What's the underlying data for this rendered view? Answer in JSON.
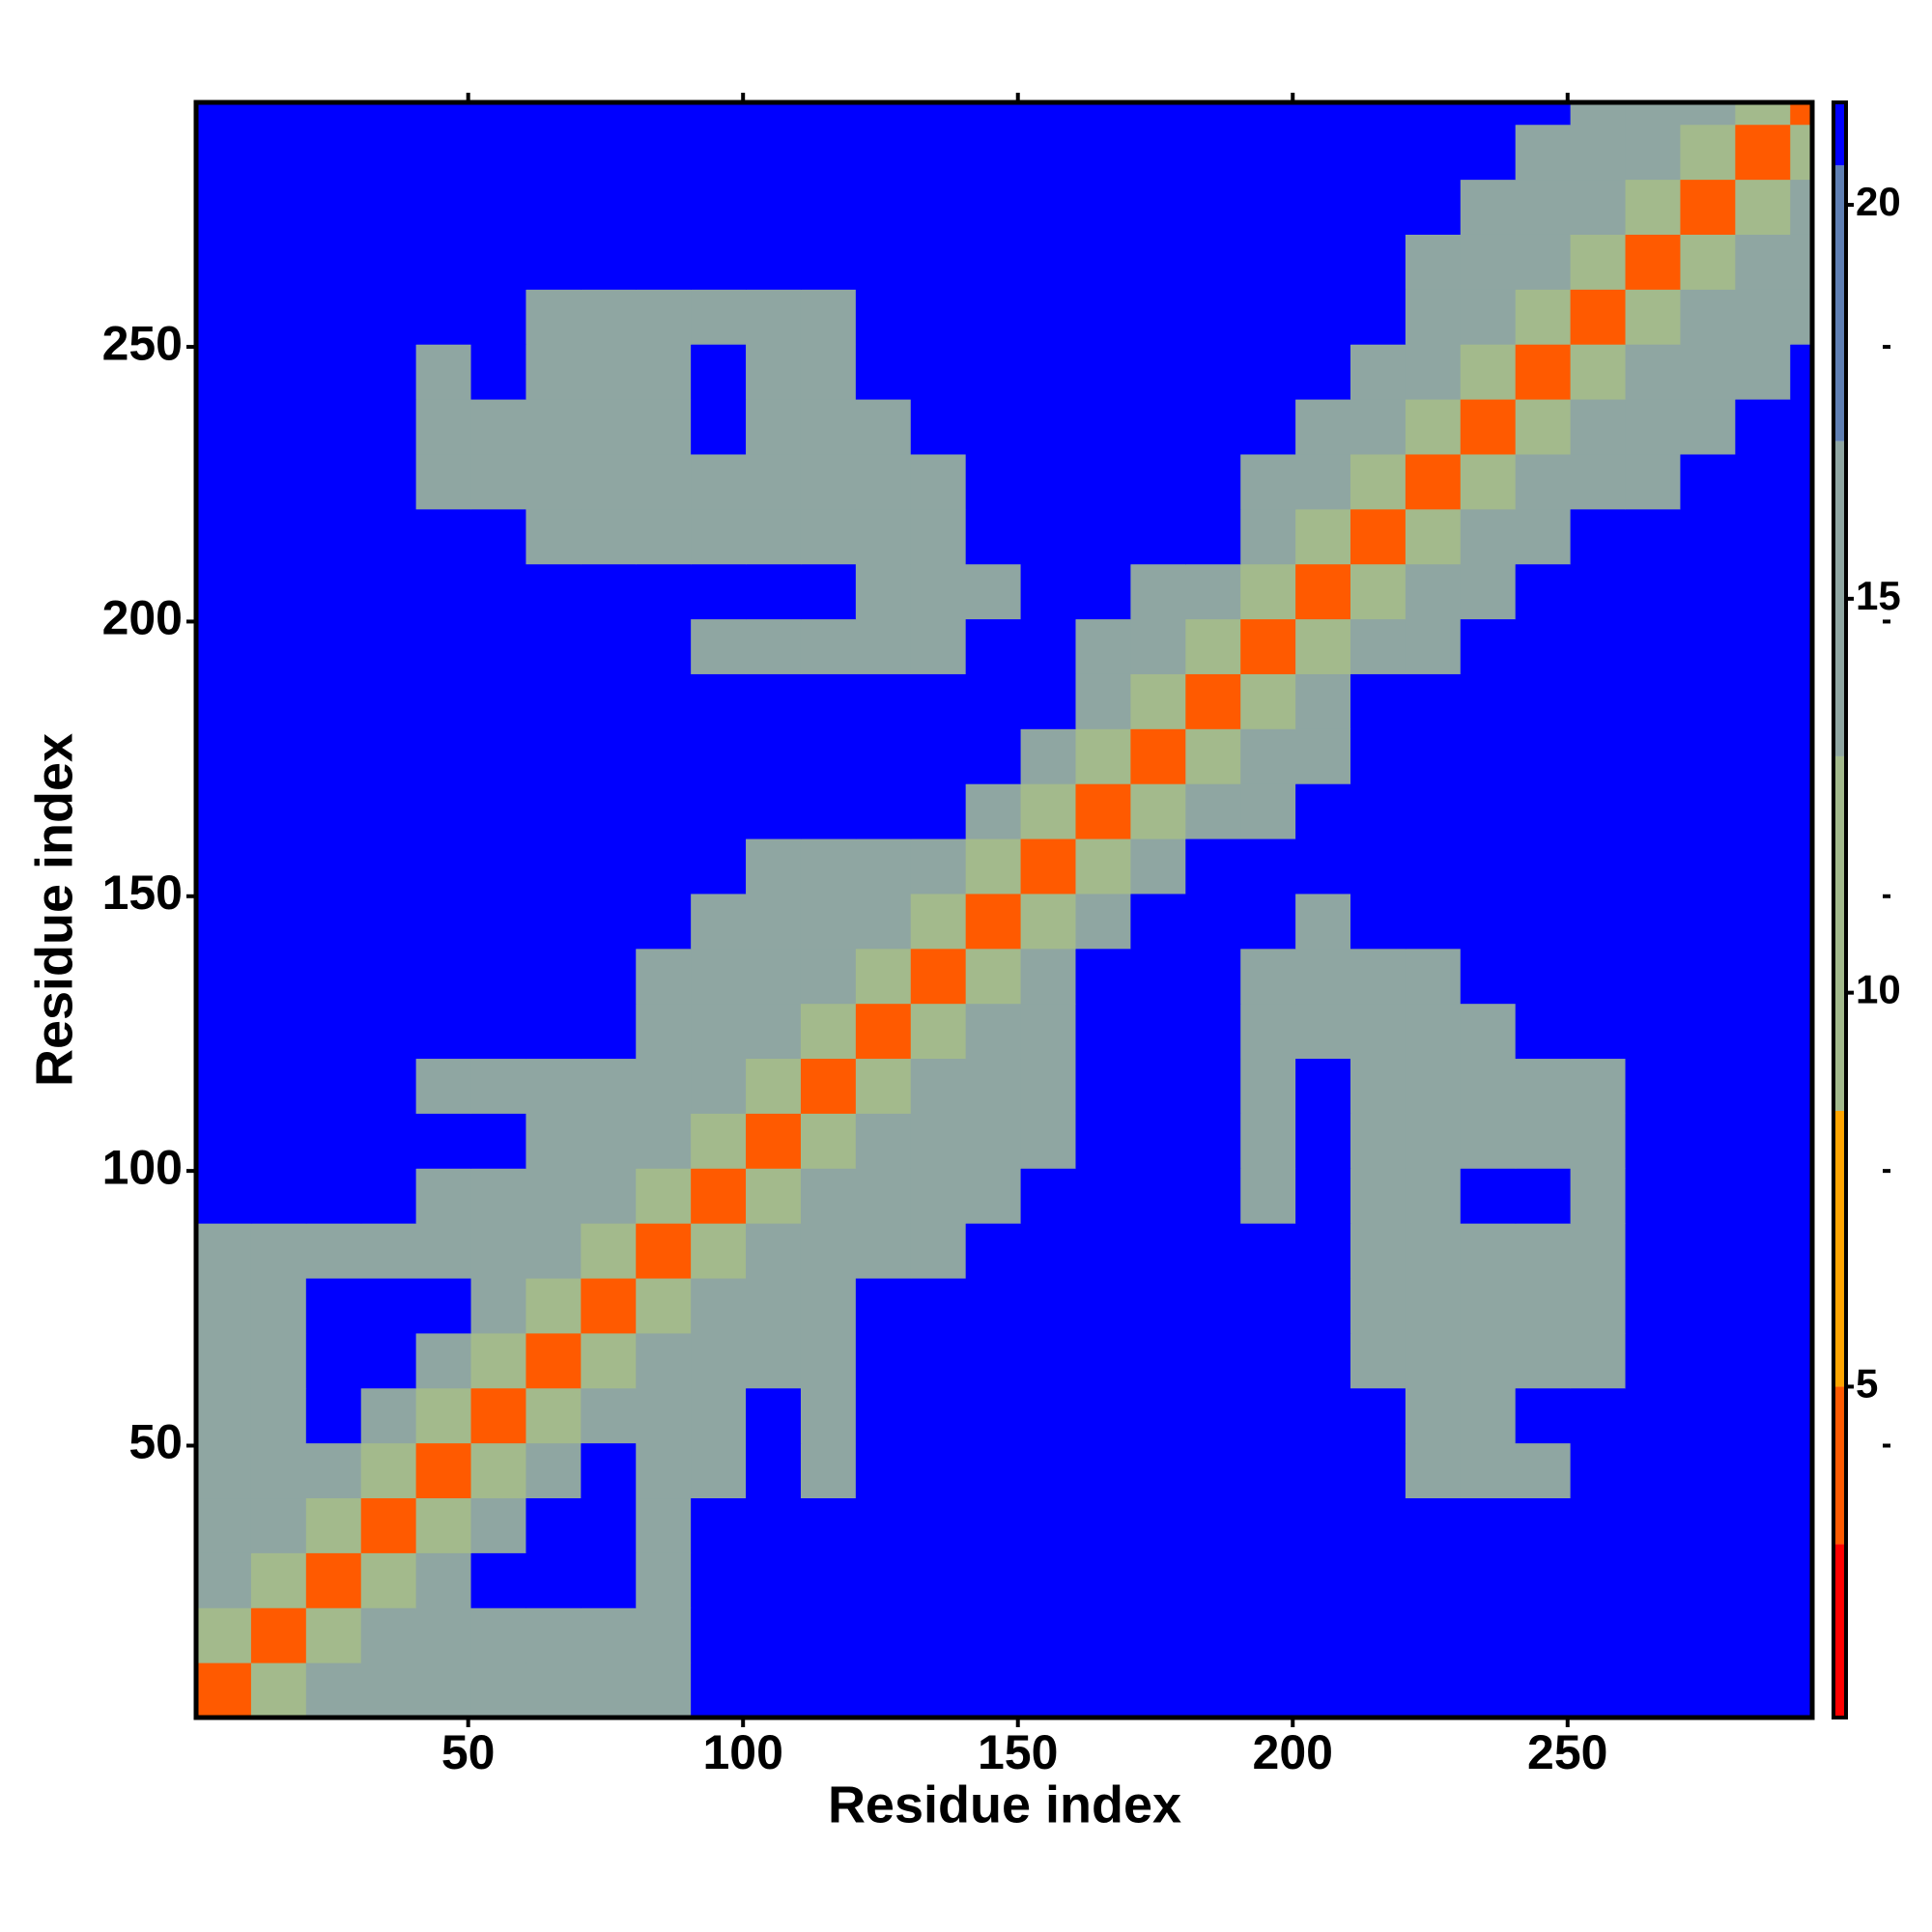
{
  "chart_data": {
    "type": "heatmap",
    "xlabel": "Residue index",
    "ylabel": "Residue index",
    "xlim": [
      0.5,
      294.5
    ],
    "ylim": [
      0.5,
      294.5
    ],
    "xticks": [
      50,
      100,
      150,
      200,
      250
    ],
    "yticks": [
      50,
      100,
      150,
      200,
      250
    ],
    "x_edges": [
      0.5,
      10.5,
      20.5,
      30.5,
      40.5,
      50.5,
      60.5,
      70.5,
      80.5,
      90.5,
      100.5,
      110.5,
      120.5,
      130.5,
      140.5,
      150.5,
      160.5,
      170.5,
      180.5,
      190.5,
      200.5,
      210.5,
      220.5,
      230.5,
      240.5,
      250.5,
      260.5,
      270.5,
      280.5,
      290.5,
      294.5
    ],
    "y_edges": [
      0.5,
      10.5,
      20.5,
      30.5,
      40.5,
      50.5,
      60.5,
      70.5,
      80.5,
      90.5,
      100.5,
      110.5,
      120.5,
      130.5,
      140.5,
      150.5,
      160.5,
      170.5,
      180.5,
      190.5,
      200.5,
      210.5,
      220.5,
      230.5,
      240.5,
      250.5,
      260.5,
      270.5,
      280.5,
      290.5,
      294.5
    ],
    "clim": [
      0.8,
      21.3
    ],
    "cticks": [
      5,
      10,
      15,
      20
    ],
    "colorscale": [
      [
        3,
        "#ff0000"
      ],
      [
        5,
        "#ff5a00"
      ],
      [
        8.5,
        "#ffa500"
      ],
      [
        13,
        "#a3ba8c"
      ],
      [
        17,
        "#8fa6a2"
      ],
      [
        20.5,
        "#5f7fb3"
      ],
      [
        21.3,
        "#0000ff"
      ]
    ],
    "z": [
      [
        4,
        11,
        15,
        14,
        14,
        14,
        14,
        14,
        14,
        21,
        21,
        21,
        21,
        21,
        21,
        21,
        21,
        21,
        21,
        21,
        21,
        21,
        21,
        21,
        21,
        21,
        21,
        21,
        21,
        21
      ],
      [
        11,
        4,
        11,
        14,
        14,
        14,
        14,
        14,
        14,
        21,
        21,
        21,
        21,
        21,
        21,
        21,
        21,
        21,
        21,
        21,
        21,
        21,
        21,
        21,
        21,
        21,
        21,
        21,
        21,
        21
      ],
      [
        15,
        11,
        4,
        11,
        15,
        21,
        21,
        21,
        14,
        21,
        21,
        21,
        21,
        21,
        21,
        21,
        21,
        21,
        21,
        21,
        21,
        21,
        21,
        21,
        21,
        21,
        21,
        21,
        21,
        21
      ],
      [
        14,
        14,
        11,
        4,
        11,
        15,
        21,
        21,
        14,
        21,
        21,
        21,
        21,
        21,
        21,
        21,
        21,
        21,
        21,
        21,
        21,
        21,
        21,
        21,
        21,
        21,
        21,
        21,
        21,
        21
      ],
      [
        14,
        14,
        15,
        11,
        4,
        11,
        15,
        21,
        14,
        14,
        21,
        16,
        21,
        21,
        21,
        21,
        21,
        21,
        21,
        21,
        21,
        21,
        15,
        15,
        15,
        21,
        21,
        21,
        21,
        21
      ],
      [
        14,
        14,
        21,
        15,
        11,
        4,
        11,
        15,
        14,
        14,
        21,
        16,
        21,
        21,
        21,
        21,
        21,
        21,
        21,
        21,
        21,
        21,
        15,
        15,
        21,
        21,
        21,
        21,
        21,
        21
      ],
      [
        14,
        14,
        21,
        21,
        15,
        11,
        4,
        11,
        15,
        14,
        16,
        16,
        21,
        21,
        21,
        21,
        21,
        21,
        21,
        21,
        21,
        14,
        14,
        14,
        14,
        14,
        21,
        21,
        21,
        21
      ],
      [
        14,
        14,
        21,
        21,
        21,
        15,
        11,
        4,
        11,
        15,
        14,
        14,
        21,
        21,
        21,
        21,
        21,
        21,
        21,
        21,
        21,
        14,
        14,
        14,
        14,
        14,
        21,
        21,
        21,
        21
      ],
      [
        14,
        14,
        14,
        14,
        14,
        14,
        15,
        11,
        4,
        11,
        15,
        14,
        16,
        16,
        21,
        21,
        21,
        21,
        21,
        21,
        21,
        14,
        14,
        14,
        14,
        14,
        21,
        21,
        21,
        21
      ],
      [
        21,
        21,
        21,
        21,
        14,
        14,
        14,
        15,
        11,
        4,
        11,
        15,
        14,
        14,
        16,
        21,
        21,
        21,
        21,
        15,
        21,
        14,
        14,
        21,
        21,
        14,
        21,
        21,
        21,
        21
      ],
      [
        21,
        21,
        21,
        21,
        21,
        21,
        16,
        14,
        15,
        11,
        4,
        11,
        15,
        14,
        14,
        16,
        21,
        21,
        21,
        15,
        21,
        14,
        14,
        14,
        14,
        14,
        21,
        21,
        21,
        21
      ],
      [
        21,
        21,
        21,
        21,
        16,
        16,
        16,
        14,
        14,
        15,
        11,
        4,
        11,
        15,
        14,
        14,
        21,
        21,
        21,
        16,
        21,
        14,
        14,
        14,
        14,
        14,
        21,
        21,
        21,
        21
      ],
      [
        21,
        21,
        21,
        21,
        21,
        21,
        21,
        21,
        16,
        14,
        15,
        11,
        4,
        11,
        15,
        16,
        21,
        21,
        21,
        15,
        15,
        14,
        15,
        14,
        21,
        21,
        21,
        21,
        21,
        21
      ],
      [
        21,
        21,
        21,
        21,
        21,
        21,
        21,
        21,
        16,
        14,
        14,
        15,
        11,
        4,
        11,
        15,
        21,
        21,
        21,
        15,
        15,
        14,
        14,
        21,
        21,
        21,
        21,
        21,
        21,
        21
      ],
      [
        21,
        21,
        21,
        21,
        21,
        21,
        21,
        21,
        21,
        16,
        14,
        14,
        15,
        11,
        4,
        11,
        15,
        21,
        21,
        21,
        16,
        21,
        21,
        21,
        21,
        21,
        21,
        21,
        21,
        21
      ],
      [
        21,
        21,
        21,
        21,
        21,
        21,
        21,
        21,
        21,
        21,
        16,
        14,
        16,
        15,
        11,
        4,
        11,
        15,
        21,
        21,
        21,
        21,
        21,
        21,
        21,
        21,
        21,
        21,
        21,
        21
      ],
      [
        21,
        21,
        21,
        21,
        21,
        21,
        21,
        21,
        21,
        21,
        21,
        21,
        21,
        21,
        15,
        11,
        4,
        11,
        15,
        15,
        21,
        21,
        21,
        21,
        21,
        21,
        21,
        21,
        21,
        21
      ],
      [
        21,
        21,
        21,
        21,
        21,
        21,
        21,
        21,
        21,
        21,
        21,
        21,
        21,
        21,
        21,
        15,
        11,
        4,
        11,
        15,
        15,
        21,
        21,
        21,
        21,
        21,
        21,
        21,
        21,
        21
      ],
      [
        21,
        21,
        21,
        21,
        21,
        21,
        21,
        21,
        21,
        21,
        21,
        21,
        21,
        21,
        21,
        21,
        15,
        11,
        4,
        11,
        15,
        21,
        21,
        21,
        21,
        21,
        21,
        21,
        21,
        21
      ],
      [
        21,
        21,
        21,
        21,
        21,
        21,
        21,
        21,
        21,
        15,
        15,
        16,
        15,
        15,
        21,
        21,
        15,
        15,
        11,
        4,
        11,
        14,
        14,
        21,
        21,
        21,
        21,
        21,
        21,
        21
      ],
      [
        21,
        21,
        21,
        21,
        21,
        21,
        21,
        21,
        21,
        21,
        21,
        21,
        15,
        15,
        16,
        21,
        21,
        15,
        15,
        11,
        4,
        11,
        14,
        15,
        21,
        21,
        21,
        21,
        21,
        21
      ],
      [
        21,
        21,
        21,
        21,
        21,
        21,
        14,
        14,
        14,
        14,
        14,
        14,
        14,
        14,
        21,
        21,
        21,
        21,
        21,
        14,
        11,
        4,
        11,
        14,
        14,
        21,
        21,
        21,
        21,
        21
      ],
      [
        21,
        21,
        21,
        21,
        15,
        15,
        14,
        14,
        14,
        14,
        14,
        14,
        15,
        14,
        21,
        21,
        21,
        21,
        21,
        14,
        14,
        11,
        4,
        11,
        14,
        14,
        15,
        21,
        21,
        21
      ],
      [
        21,
        21,
        21,
        21,
        15,
        15,
        14,
        14,
        14,
        21,
        14,
        14,
        14,
        21,
        21,
        21,
        21,
        21,
        21,
        21,
        15,
        14,
        11,
        4,
        11,
        14,
        14,
        15,
        21,
        21
      ],
      [
        21,
        21,
        21,
        21,
        15,
        21,
        14,
        14,
        14,
        21,
        14,
        14,
        21,
        21,
        21,
        21,
        21,
        21,
        21,
        21,
        21,
        14,
        14,
        11,
        4,
        11,
        14,
        14,
        15,
        21
      ],
      [
        21,
        21,
        21,
        21,
        21,
        21,
        14,
        14,
        14,
        14,
        14,
        14,
        21,
        21,
        21,
        21,
        21,
        21,
        21,
        21,
        21,
        21,
        14,
        14,
        11,
        4,
        11,
        14,
        14,
        15
      ],
      [
        21,
        21,
        21,
        21,
        21,
        21,
        21,
        21,
        21,
        21,
        21,
        21,
        21,
        21,
        21,
        21,
        21,
        21,
        21,
        21,
        21,
        21,
        15,
        14,
        14,
        11,
        4,
        11,
        14,
        14
      ],
      [
        21,
        21,
        21,
        21,
        21,
        21,
        21,
        21,
        21,
        21,
        21,
        21,
        21,
        21,
        21,
        21,
        21,
        21,
        21,
        21,
        21,
        21,
        21,
        15,
        14,
        14,
        11,
        4,
        11,
        14
      ],
      [
        21,
        21,
        21,
        21,
        21,
        21,
        21,
        21,
        21,
        21,
        21,
        21,
        21,
        21,
        21,
        21,
        21,
        21,
        21,
        21,
        21,
        21,
        21,
        21,
        15,
        14,
        14,
        11,
        4,
        11
      ],
      [
        21,
        21,
        21,
        21,
        21,
        21,
        21,
        21,
        21,
        21,
        21,
        21,
        21,
        21,
        21,
        21,
        21,
        21,
        21,
        21,
        21,
        21,
        21,
        21,
        21,
        15,
        14,
        14,
        11,
        4
      ]
    ]
  }
}
